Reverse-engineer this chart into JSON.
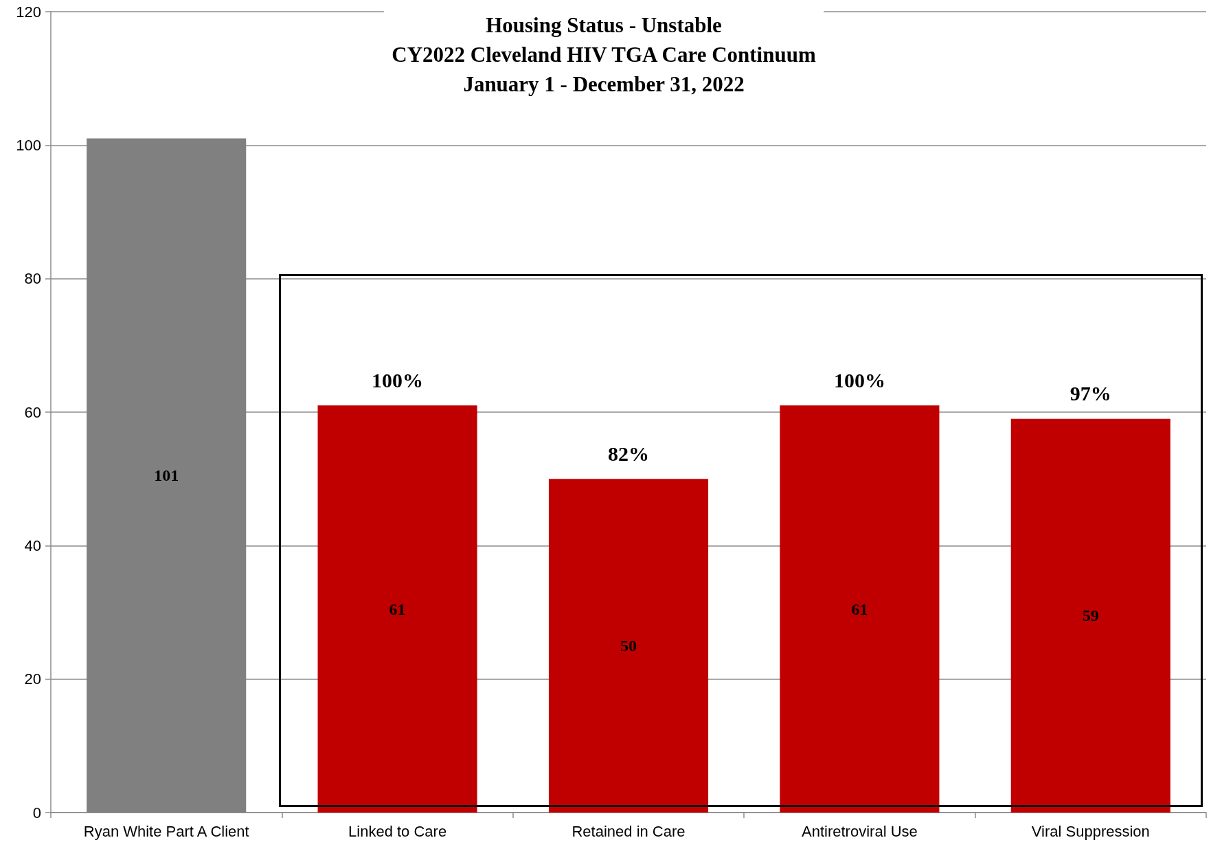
{
  "chart_data": {
    "type": "bar",
    "title": "Housing Status - Unstable\nCY2022 Cleveland HIV TGA Care Continuum\nJanuary 1 - December 31, 2022",
    "categories": [
      "Ryan White Part A Client",
      "Linked to Care",
      "Retained in Care",
      "Antiretroviral Use",
      "Viral Suppression"
    ],
    "values": [
      101,
      61,
      50,
      61,
      59
    ],
    "colors": [
      "#808080",
      "#c00000",
      "#c00000",
      "#c00000",
      "#c00000"
    ],
    "data_labels": true,
    "annotations": [
      {
        "text": "100%",
        "x": "Linked to Care",
        "y": 61
      },
      {
        "text": "82%",
        "x": "Retained in Care",
        "y": 50
      },
      {
        "text": "100%",
        "x": "Antiretroviral Use",
        "y": 61
      },
      {
        "text": "97%",
        "x": "Viral Suppression",
        "y": 59
      }
    ],
    "ylim": [
      0,
      120
    ],
    "yticks": [
      0,
      20,
      40,
      60,
      80,
      100,
      120
    ],
    "grid": "y"
  }
}
